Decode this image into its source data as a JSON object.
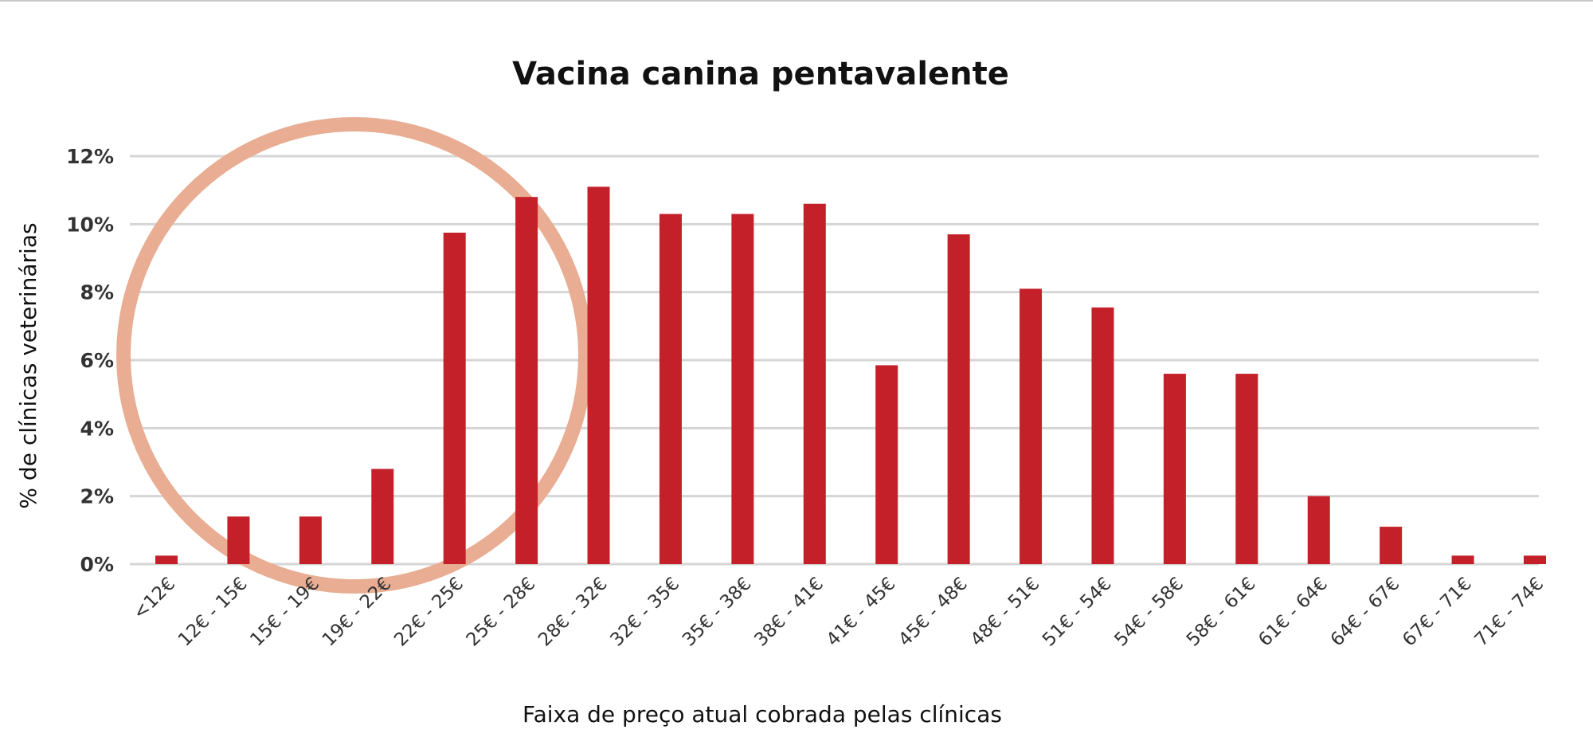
{
  "chart_data": {
    "type": "bar",
    "title": "Vacina canina pentavalente",
    "xlabel": "Faixa de preço atual cobrada pelas clínicas",
    "ylabel": "% de clínicas veterinárias",
    "ylim": [
      0,
      12
    ],
    "yticks": [
      "0%",
      "2%",
      "4%",
      "6%",
      "8%",
      "10%",
      "12%"
    ],
    "grid": true,
    "categories": [
      "<12€",
      "12€ - 15€",
      "15€ - 19€",
      "19€ - 22€",
      "22€ - 25€",
      "25€ - 28€",
      "28€ - 32€",
      "32€ - 35€",
      "35€ - 38€",
      "38€ - 41€",
      "41€ - 45€",
      "45€ - 48€",
      "48€ - 51€",
      "51€ - 54€",
      "54€ - 58€",
      "58€ - 61€",
      "61€ - 64€",
      "64€ - 67€",
      "67€ - 71€",
      "71€ - 74€"
    ],
    "values": [
      0.25,
      1.4,
      1.4,
      2.8,
      9.75,
      10.8,
      11.1,
      10.3,
      10.3,
      10.6,
      5.85,
      9.7,
      8.1,
      7.55,
      5.6,
      5.6,
      2.0,
      1.1,
      0.25,
      0.25
    ],
    "bar_color": "#c4202a",
    "annotation": {
      "shape": "circle",
      "color": "#e8ad92",
      "highlights": [
        "<12€",
        "12€ - 15€",
        "15€ - 19€",
        "19€ - 22€",
        "22€ - 25€"
      ]
    }
  }
}
